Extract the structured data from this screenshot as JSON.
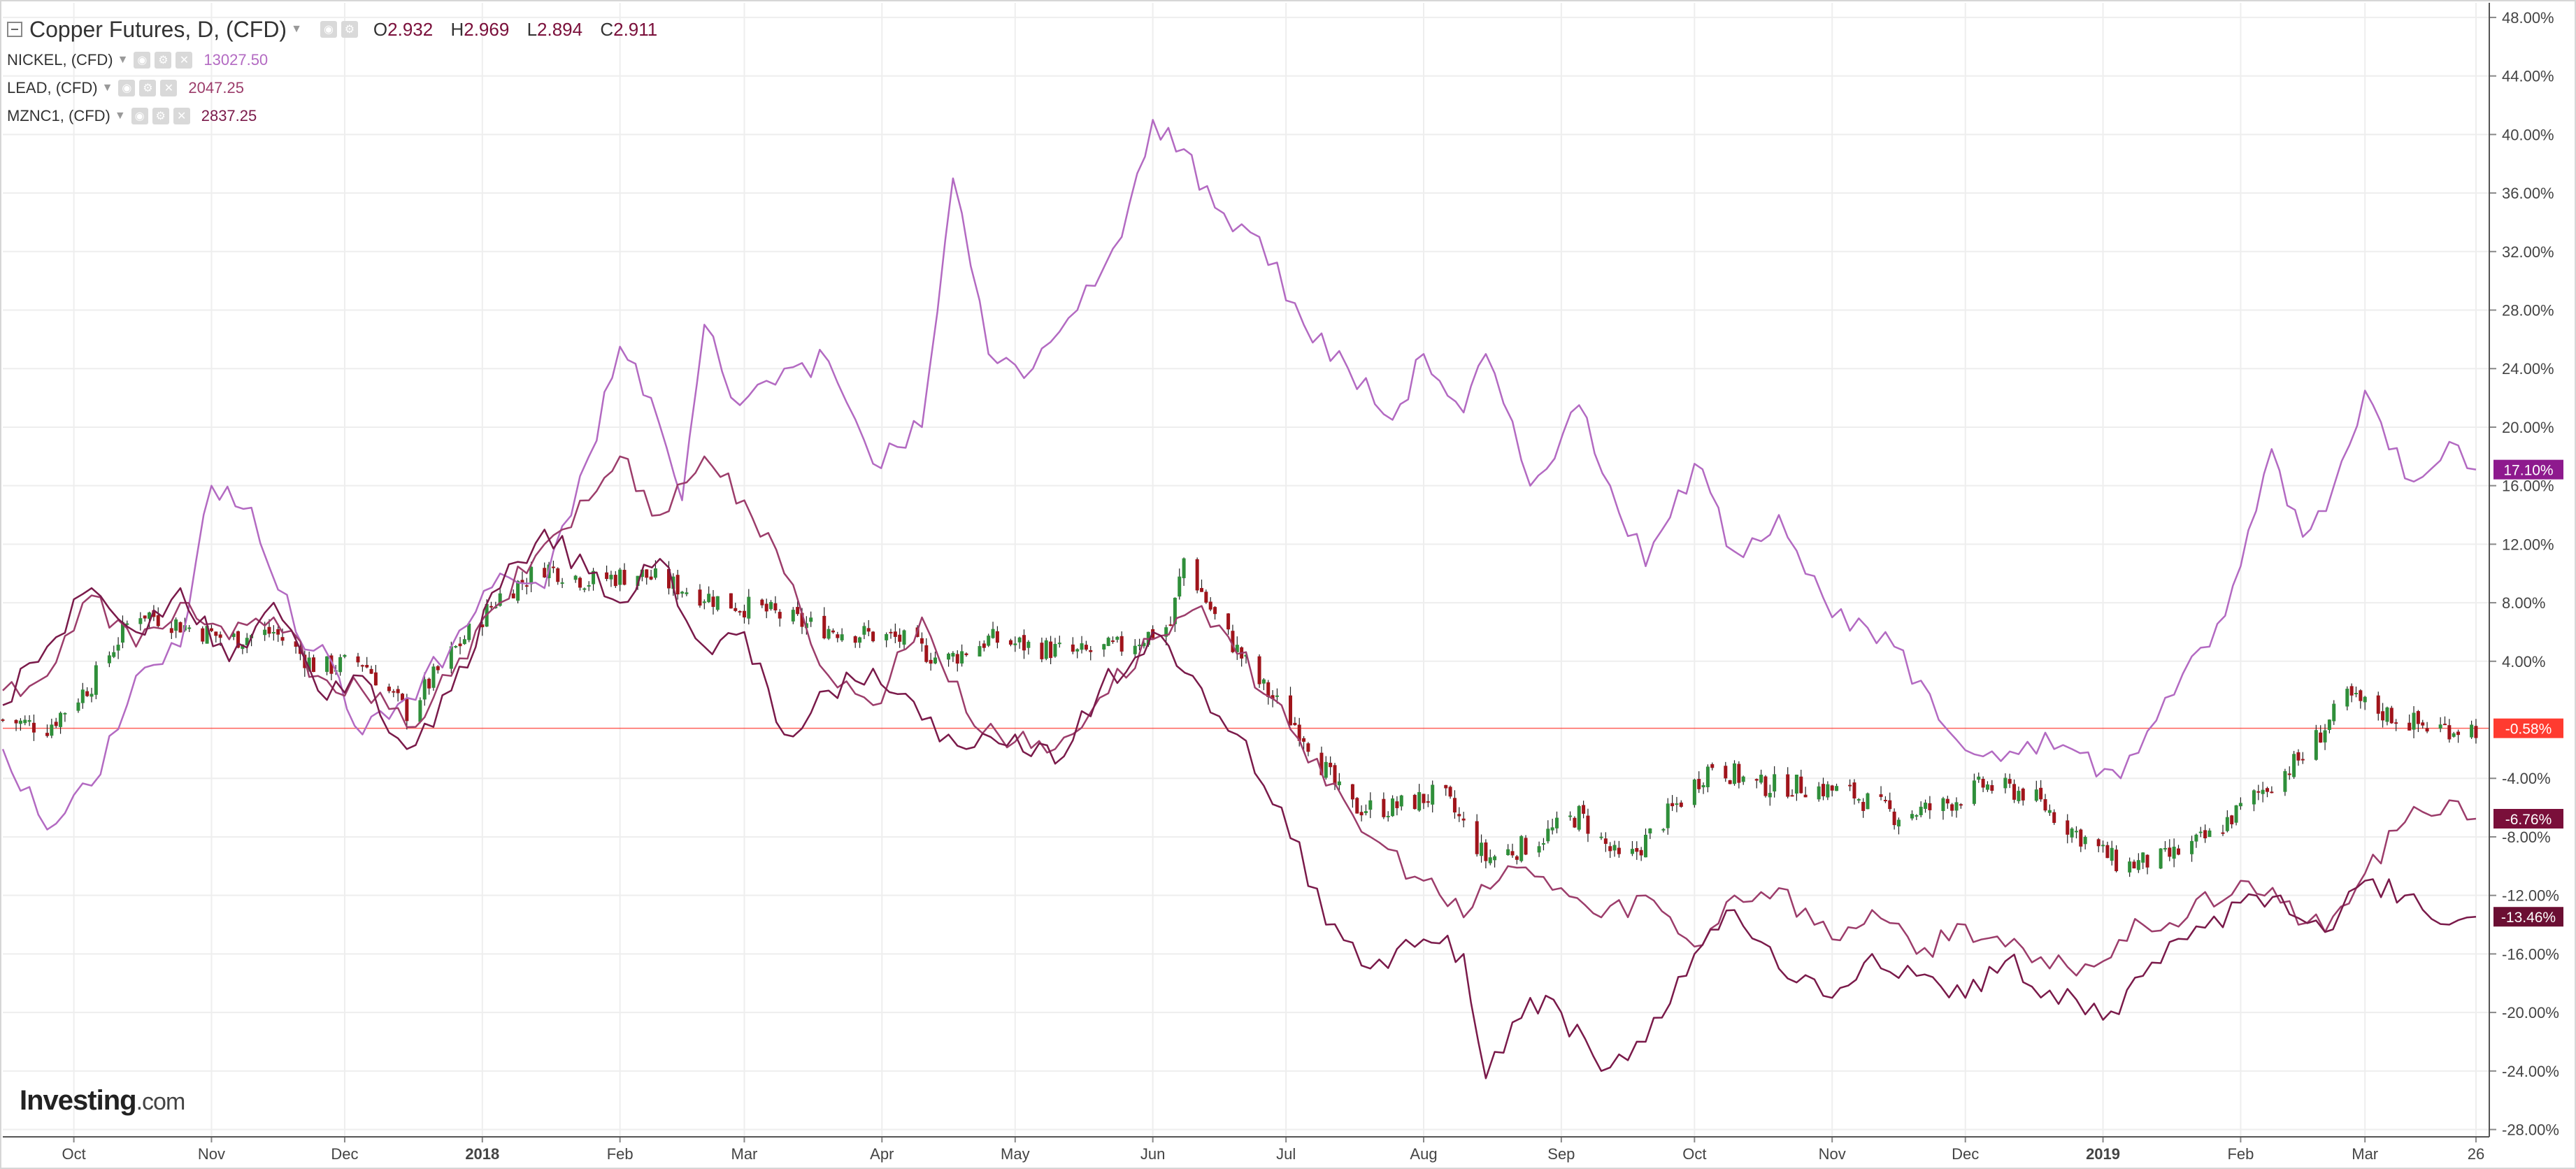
{
  "chart_data": {
    "type": "line",
    "title": "Copper Futures, D, (CFD)",
    "ohlc": [
      {
        "key": "O",
        "value": "2.932"
      },
      {
        "key": "H",
        "value": "2.969"
      },
      {
        "key": "L",
        "value": "2.894"
      },
      {
        "key": "C",
        "value": "2.911"
      }
    ],
    "y_unit": "percent change",
    "ylim": [
      -28.5,
      49
    ],
    "y_ticks": [
      {
        "v": 48,
        "label": "48.00%"
      },
      {
        "v": 44,
        "label": "44.00%"
      },
      {
        "v": 40,
        "label": "40.00%"
      },
      {
        "v": 36,
        "label": "36.00%"
      },
      {
        "v": 32,
        "label": "32.00%"
      },
      {
        "v": 28,
        "label": "28.00%"
      },
      {
        "v": 24,
        "label": "24.00%"
      },
      {
        "v": 20,
        "label": "20.00%"
      },
      {
        "v": 16,
        "label": "16.00%"
      },
      {
        "v": 12,
        "label": "12.00%"
      },
      {
        "v": 8,
        "label": "8.00%"
      },
      {
        "v": 4,
        "label": "4.00%"
      },
      {
        "v": -4,
        "label": "-4.00%"
      },
      {
        "v": -8,
        "label": "-8.00%"
      },
      {
        "v": -12,
        "label": "-12.00%"
      },
      {
        "v": -16,
        "label": "-16.00%"
      },
      {
        "v": -20,
        "label": "-20.00%"
      },
      {
        "v": -24,
        "label": "-24.00%"
      },
      {
        "v": -28,
        "label": "-28.00%"
      }
    ],
    "x_range": [
      "2017-09-15",
      "2019-03-29"
    ],
    "x_ticks": [
      {
        "date": "2017-10-01",
        "label": "Oct",
        "bold": false
      },
      {
        "date": "2017-11-01",
        "label": "Nov",
        "bold": false
      },
      {
        "date": "2017-12-01",
        "label": "Dec",
        "bold": false
      },
      {
        "date": "2018-01-01",
        "label": "2018",
        "bold": true
      },
      {
        "date": "2018-02-01",
        "label": "Feb",
        "bold": false
      },
      {
        "date": "2018-03-01",
        "label": "Mar",
        "bold": false
      },
      {
        "date": "2018-04-01",
        "label": "Apr",
        "bold": false
      },
      {
        "date": "2018-05-01",
        "label": "May",
        "bold": false
      },
      {
        "date": "2018-06-01",
        "label": "Jun",
        "bold": false
      },
      {
        "date": "2018-07-01",
        "label": "Jul",
        "bold": false
      },
      {
        "date": "2018-08-01",
        "label": "Aug",
        "bold": false
      },
      {
        "date": "2018-09-01",
        "label": "Sep",
        "bold": false
      },
      {
        "date": "2018-10-01",
        "label": "Oct",
        "bold": false
      },
      {
        "date": "2018-11-01",
        "label": "Nov",
        "bold": false
      },
      {
        "date": "2018-12-01",
        "label": "Dec",
        "bold": false
      },
      {
        "date": "2019-01-01",
        "label": "2019",
        "bold": true
      },
      {
        "date": "2019-02-01",
        "label": "Feb",
        "bold": false
      },
      {
        "date": "2019-03-01",
        "label": "Mar",
        "bold": false
      },
      {
        "date": "2019-03-26",
        "label": "26",
        "bold": false
      }
    ],
    "grid": true,
    "copper_candles": [
      [
        "2017-09-15",
        0.0
      ],
      [
        "2017-09-25",
        -0.5
      ],
      [
        "2017-10-05",
        2.5
      ],
      [
        "2017-10-15",
        7.5
      ],
      [
        "2017-10-25",
        6.5
      ],
      [
        "2017-11-05",
        5.5
      ],
      [
        "2017-11-15",
        6.0
      ],
      [
        "2017-11-25",
        3.5
      ],
      [
        "2017-12-05",
        4.0
      ],
      [
        "2017-12-15",
        0.5
      ],
      [
        "2017-12-25",
        4.5
      ],
      [
        "2018-01-05",
        8.5
      ],
      [
        "2018-01-15",
        10.5
      ],
      [
        "2018-01-25",
        9.5
      ],
      [
        "2018-02-05",
        10.0
      ],
      [
        "2018-02-15",
        9.0
      ],
      [
        "2018-02-25",
        8.0
      ],
      [
        "2018-03-05",
        7.5
      ],
      [
        "2018-03-15",
        6.5
      ],
      [
        "2018-03-25",
        6.0
      ],
      [
        "2018-04-05",
        5.5
      ],
      [
        "2018-04-15",
        4.0
      ],
      [
        "2018-04-25",
        5.5
      ],
      [
        "2018-05-05",
        5.0
      ],
      [
        "2018-05-15",
        4.5
      ],
      [
        "2018-05-25",
        5.0
      ],
      [
        "2018-06-05",
        6.5
      ],
      [
        "2018-06-08",
        11.0
      ],
      [
        "2018-06-15",
        7.0
      ],
      [
        "2018-06-25",
        2.5
      ],
      [
        "2018-07-05",
        -1.0
      ],
      [
        "2018-07-15",
        -6.0
      ],
      [
        "2018-07-25",
        -6.0
      ],
      [
        "2018-08-05",
        -5.0
      ],
      [
        "2018-08-15",
        -9.5
      ],
      [
        "2018-08-25",
        -8.5
      ],
      [
        "2018-09-05",
        -6.5
      ],
      [
        "2018-09-15",
        -10.0
      ],
      [
        "2018-09-25",
        -6.5
      ],
      [
        "2018-10-05",
        -3.0
      ],
      [
        "2018-10-15",
        -4.5
      ],
      [
        "2018-10-25",
        -4.5
      ],
      [
        "2018-11-05",
        -5.0
      ],
      [
        "2018-11-15",
        -6.5
      ],
      [
        "2018-11-25",
        -6.0
      ],
      [
        "2018-12-05",
        -4.5
      ],
      [
        "2018-12-15",
        -5.0
      ],
      [
        "2018-12-25",
        -7.5
      ],
      [
        "2019-01-05",
        -10.0
      ],
      [
        "2019-01-15",
        -9.5
      ],
      [
        "2019-01-25",
        -8.0
      ],
      [
        "2019-02-05",
        -5.0
      ],
      [
        "2019-02-15",
        -2.5
      ],
      [
        "2019-02-25",
        1.5
      ],
      [
        "2019-03-05",
        0.5
      ],
      [
        "2019-03-15",
        -0.5
      ],
      [
        "2019-03-26",
        -0.58
      ]
    ],
    "series": [
      {
        "name": "NICKEL, (CFD)",
        "color": "#b36ac2",
        "end_value": 17.1,
        "end_label": "17.10%",
        "points": [
          [
            "2017-09-15",
            -2.0
          ],
          [
            "2017-09-25",
            -7.5
          ],
          [
            "2017-10-05",
            -4.5
          ],
          [
            "2017-10-15",
            3.0
          ],
          [
            "2017-10-25",
            5.0
          ],
          [
            "2017-11-01",
            16.0
          ],
          [
            "2017-11-10",
            14.5
          ],
          [
            "2017-11-20",
            6.0
          ],
          [
            "2017-11-28",
            4.0
          ],
          [
            "2017-12-05",
            -1.0
          ],
          [
            "2017-12-15",
            1.5
          ],
          [
            "2017-12-25",
            5.0
          ],
          [
            "2018-01-05",
            10.0
          ],
          [
            "2018-01-15",
            9.0
          ],
          [
            "2018-01-25",
            18.0
          ],
          [
            "2018-02-01",
            25.5
          ],
          [
            "2018-02-08",
            22.0
          ],
          [
            "2018-02-15",
            15.0
          ],
          [
            "2018-02-20",
            27.0
          ],
          [
            "2018-02-28",
            21.5
          ],
          [
            "2018-03-10",
            24.0
          ],
          [
            "2018-03-20",
            24.5
          ],
          [
            "2018-03-30",
            17.5
          ],
          [
            "2018-04-10",
            20.0
          ],
          [
            "2018-04-17",
            37.0
          ],
          [
            "2018-04-25",
            25.0
          ],
          [
            "2018-05-05",
            24.0
          ],
          [
            "2018-05-15",
            28.0
          ],
          [
            "2018-05-25",
            33.0
          ],
          [
            "2018-06-01",
            41.0
          ],
          [
            "2018-06-08",
            39.0
          ],
          [
            "2018-06-15",
            35.0
          ],
          [
            "2018-06-25",
            33.0
          ],
          [
            "2018-07-05",
            27.0
          ],
          [
            "2018-07-15",
            24.0
          ],
          [
            "2018-07-25",
            20.5
          ],
          [
            "2018-08-01",
            25.0
          ],
          [
            "2018-08-10",
            21.0
          ],
          [
            "2018-08-15",
            25.0
          ],
          [
            "2018-08-25",
            16.0
          ],
          [
            "2018-09-05",
            21.5
          ],
          [
            "2018-09-12",
            16.0
          ],
          [
            "2018-09-20",
            10.5
          ],
          [
            "2018-10-01",
            17.5
          ],
          [
            "2018-10-10",
            11.5
          ],
          [
            "2018-10-20",
            14.0
          ],
          [
            "2018-11-01",
            7.0
          ],
          [
            "2018-11-15",
            5.0
          ],
          [
            "2018-11-25",
            0.0
          ],
          [
            "2018-12-05",
            -2.5
          ],
          [
            "2018-12-15",
            -1.5
          ],
          [
            "2018-12-25",
            -2.0
          ],
          [
            "2019-01-05",
            -4.0
          ],
          [
            "2019-01-15",
            1.5
          ],
          [
            "2019-01-25",
            5.0
          ],
          [
            "2019-02-01",
            10.5
          ],
          [
            "2019-02-08",
            18.5
          ],
          [
            "2019-02-15",
            12.5
          ],
          [
            "2019-02-22",
            16.0
          ],
          [
            "2019-03-01",
            22.5
          ],
          [
            "2019-03-10",
            16.5
          ],
          [
            "2019-03-20",
            19.0
          ],
          [
            "2019-03-26",
            17.1
          ]
        ]
      },
      {
        "name": "LEAD, (CFD)",
        "color": "#9c3d6b",
        "end_value": -6.76,
        "end_label": "-6.76%",
        "points": [
          [
            "2017-09-15",
            2.0
          ],
          [
            "2017-09-25",
            3.0
          ],
          [
            "2017-10-05",
            8.5
          ],
          [
            "2017-10-15",
            5.0
          ],
          [
            "2017-10-25",
            8.0
          ],
          [
            "2017-11-05",
            5.5
          ],
          [
            "2017-11-15",
            7.0
          ],
          [
            "2017-11-25",
            3.0
          ],
          [
            "2017-12-05",
            2.0
          ],
          [
            "2017-12-15",
            -0.5
          ],
          [
            "2017-12-25",
            3.0
          ],
          [
            "2018-01-05",
            8.0
          ],
          [
            "2018-01-15",
            12.0
          ],
          [
            "2018-01-25",
            15.0
          ],
          [
            "2018-02-01",
            18.0
          ],
          [
            "2018-02-10",
            14.0
          ],
          [
            "2018-02-20",
            18.0
          ],
          [
            "2018-03-01",
            15.0
          ],
          [
            "2018-03-10",
            10.0
          ],
          [
            "2018-03-20",
            3.0
          ],
          [
            "2018-03-30",
            1.0
          ],
          [
            "2018-04-10",
            7.0
          ],
          [
            "2018-04-20",
            0.5
          ],
          [
            "2018-05-01",
            -1.5
          ],
          [
            "2018-05-10",
            -2.0
          ],
          [
            "2018-05-20",
            1.5
          ],
          [
            "2018-06-01",
            5.5
          ],
          [
            "2018-06-10",
            7.5
          ],
          [
            "2018-06-20",
            4.5
          ],
          [
            "2018-06-30",
            1.0
          ],
          [
            "2018-07-10",
            -4.5
          ],
          [
            "2018-07-20",
            -8.0
          ],
          [
            "2018-08-01",
            -11.0
          ],
          [
            "2018-08-10",
            -13.5
          ],
          [
            "2018-08-20",
            -10.0
          ],
          [
            "2018-09-01",
            -11.5
          ],
          [
            "2018-09-10",
            -13.5
          ],
          [
            "2018-09-20",
            -12.0
          ],
          [
            "2018-10-01",
            -15.5
          ],
          [
            "2018-10-10",
            -12.0
          ],
          [
            "2018-10-20",
            -11.5
          ],
          [
            "2018-11-01",
            -15.0
          ],
          [
            "2018-11-10",
            -13.0
          ],
          [
            "2018-11-20",
            -16.0
          ],
          [
            "2018-12-01",
            -14.0
          ],
          [
            "2018-12-10",
            -15.5
          ],
          [
            "2018-12-20",
            -17.0
          ],
          [
            "2019-01-01",
            -16.5
          ],
          [
            "2019-01-10",
            -14.0
          ],
          [
            "2019-01-20",
            -13.5
          ],
          [
            "2019-02-01",
            -11.0
          ],
          [
            "2019-02-10",
            -12.5
          ],
          [
            "2019-02-20",
            -14.5
          ],
          [
            "2019-03-01",
            -10.5
          ],
          [
            "2019-03-10",
            -7.0
          ],
          [
            "2019-03-20",
            -5.5
          ],
          [
            "2019-03-26",
            -6.76
          ]
        ]
      },
      {
        "name": "MZNC1, (CFD)",
        "color": "#7a1a4a",
        "end_value": -13.46,
        "end_label": "-13.46%",
        "points": [
          [
            "2017-09-15",
            1.0
          ],
          [
            "2017-09-25",
            5.0
          ],
          [
            "2017-10-05",
            9.0
          ],
          [
            "2017-10-15",
            6.0
          ],
          [
            "2017-10-25",
            9.0
          ],
          [
            "2017-11-05",
            4.0
          ],
          [
            "2017-11-15",
            8.0
          ],
          [
            "2017-11-25",
            2.0
          ],
          [
            "2017-12-05",
            3.0
          ],
          [
            "2017-12-15",
            -2.0
          ],
          [
            "2017-12-25",
            2.0
          ],
          [
            "2018-01-05",
            9.0
          ],
          [
            "2018-01-15",
            13.0
          ],
          [
            "2018-01-25",
            10.0
          ],
          [
            "2018-02-01",
            8.0
          ],
          [
            "2018-02-10",
            11.0
          ],
          [
            "2018-02-20",
            5.0
          ],
          [
            "2018-03-01",
            6.0
          ],
          [
            "2018-03-10",
            -1.0
          ],
          [
            "2018-03-20",
            2.0
          ],
          [
            "2018-03-30",
            3.5
          ],
          [
            "2018-04-10",
            0.0
          ],
          [
            "2018-04-20",
            -2.0
          ],
          [
            "2018-05-01",
            -1.0
          ],
          [
            "2018-05-10",
            -3.0
          ],
          [
            "2018-05-20",
            2.0
          ],
          [
            "2018-06-01",
            6.0
          ],
          [
            "2018-06-10",
            3.0
          ],
          [
            "2018-06-20",
            -1.0
          ],
          [
            "2018-06-30",
            -6.0
          ],
          [
            "2018-07-10",
            -14.0
          ],
          [
            "2018-07-20",
            -17.0
          ],
          [
            "2018-08-01",
            -15.0
          ],
          [
            "2018-08-10",
            -16.0
          ],
          [
            "2018-08-15",
            -24.5
          ],
          [
            "2018-08-25",
            -19.0
          ],
          [
            "2018-09-01",
            -20.0
          ],
          [
            "2018-09-10",
            -24.0
          ],
          [
            "2018-09-20",
            -22.0
          ],
          [
            "2018-10-01",
            -16.0
          ],
          [
            "2018-10-10",
            -13.0
          ],
          [
            "2018-10-20",
            -17.0
          ],
          [
            "2018-11-01",
            -19.0
          ],
          [
            "2018-11-10",
            -16.0
          ],
          [
            "2018-11-20",
            -17.5
          ],
          [
            "2018-12-01",
            -19.0
          ],
          [
            "2018-12-10",
            -16.5
          ],
          [
            "2018-12-20",
            -18.5
          ],
          [
            "2019-01-01",
            -20.5
          ],
          [
            "2019-01-10",
            -17.5
          ],
          [
            "2019-01-20",
            -15.0
          ],
          [
            "2019-02-01",
            -12.5
          ],
          [
            "2019-02-10",
            -12.0
          ],
          [
            "2019-02-20",
            -14.5
          ],
          [
            "2019-03-01",
            -11.0
          ],
          [
            "2019-03-10",
            -12.0
          ],
          [
            "2019-03-20",
            -14.0
          ],
          [
            "2019-03-26",
            -13.46
          ]
        ]
      }
    ],
    "current_line": {
      "value": -0.58,
      "label": "-0.58%",
      "color": "#ff3b30"
    },
    "colors": {
      "up_candle": "#2f8f3a",
      "down_candle": "#a0141b",
      "grid": "#eeeeee",
      "axis_text": "#444444"
    }
  },
  "legend": {
    "main_title": "Copper Futures, D, (CFD)",
    "items": [
      {
        "name": "NICKEL, (CFD)",
        "value": "13027.50"
      },
      {
        "name": "LEAD, (CFD)",
        "value": "2047.25"
      },
      {
        "name": "MZNC1, (CFD)",
        "value": "2837.25"
      }
    ]
  },
  "watermark": {
    "brand": "Investing",
    "suffix": ".com"
  }
}
